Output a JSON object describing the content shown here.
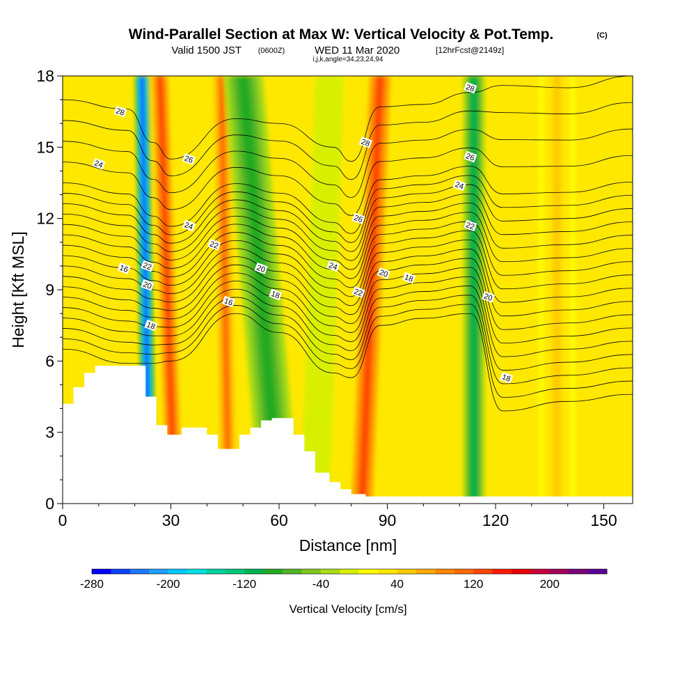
{
  "header": {
    "title": "Wind-Parallel Section at Max W: Vertical Velocity & Pot.Temp.",
    "copyright": "(C)",
    "valid_prefix": "Valid 1500 JST",
    "valid_utc": "(0600Z)",
    "valid_date": "WED 11 Mar 2020",
    "forecast": "[12hrFcst@2149z]",
    "indices": "i,j,k,angle=34,23,24,94"
  },
  "chart_data": {
    "type": "heatmap",
    "xlabel": "Distance [nm]",
    "ylabel": "Height [Kft MSL]",
    "xlim": [
      0,
      158
    ],
    "ylim": [
      0,
      18
    ],
    "x_ticks": [
      "0",
      "30",
      "60",
      "90",
      "120",
      "150"
    ],
    "y_ticks": [
      "0",
      "3",
      "6",
      "9",
      "12",
      "15",
      "18"
    ],
    "x_tick_values": [
      0,
      30,
      60,
      90,
      120,
      150
    ],
    "y_tick_values": [
      0,
      3,
      6,
      9,
      12,
      15,
      18
    ],
    "fill_variable": "Vertical Velocity [cm/s]",
    "contour_variable": "Potential Temperature",
    "velocity_bands": [
      {
        "center_top": 22,
        "center_bottom": 24,
        "width": 4,
        "value": -260
      },
      {
        "center_top": 27,
        "center_bottom": 31,
        "width": 6,
        "value": 120
      },
      {
        "center_top": 44,
        "center_bottom": 46,
        "width": 6,
        "value": 100
      },
      {
        "center_top": 50,
        "center_bottom": 60,
        "width": 11,
        "value": -100
      },
      {
        "center_top": 74,
        "center_bottom": 70,
        "width": 8,
        "value": -20
      },
      {
        "center_top": 88,
        "center_bottom": 83,
        "width": 8,
        "value": 120
      },
      {
        "center_top": 114,
        "center_bottom": 114,
        "width": 6,
        "value": -120
      },
      {
        "center_top": 137,
        "center_bottom": 137,
        "width": 10,
        "value": 40
      }
    ],
    "terrain": {
      "x": [
        0,
        3,
        3,
        6,
        6,
        9,
        9,
        16,
        16,
        23,
        23,
        26,
        26,
        29,
        29,
        33,
        33,
        40,
        40,
        43,
        43,
        49,
        49,
        52,
        52,
        55,
        55,
        58,
        58,
        64,
        64,
        67,
        67,
        70,
        70,
        74,
        74,
        77,
        77,
        80,
        80,
        84,
        84,
        158
      ],
      "heights": [
        4.2,
        4.2,
        4.9,
        4.9,
        5.5,
        5.5,
        5.8,
        5.8,
        5.8,
        5.8,
        4.5,
        4.5,
        3.3,
        3.3,
        2.9,
        2.9,
        3.2,
        3.2,
        2.9,
        2.9,
        2.3,
        2.3,
        2.9,
        2.9,
        3.2,
        3.2,
        3.5,
        3.5,
        3.6,
        3.6,
        2.9,
        2.9,
        2.2,
        2.2,
        1.3,
        1.3,
        0.9,
        0.9,
        0.6,
        0.6,
        0.4,
        0.4,
        0.3,
        0.3
      ]
    },
    "isentropes": {
      "values": [
        16,
        16.5,
        17,
        17.5,
        18,
        18.5,
        19,
        19.5,
        20,
        20.5,
        21,
        21.5,
        22,
        22.5,
        23,
        23.5,
        24,
        25,
        26,
        27,
        28
      ],
      "x": [
        0,
        18,
        25,
        30,
        48,
        60,
        75,
        80,
        88,
        100,
        113,
        122,
        140,
        158
      ],
      "heights_16": [
        6.5,
        5.9,
        5.9,
        6.0,
        8.0,
        7.2,
        5.5,
        5.3,
        7.5,
        7.8,
        8.0,
        3.9,
        4.3,
        4.6
      ],
      "heights_28": [
        17.0,
        16.6,
        15.2,
        14.5,
        16.2,
        16.0,
        15.0,
        14.4,
        16.7,
        16.8,
        17.3,
        17.6,
        17.5,
        18.0
      ]
    },
    "contour_labels": [
      {
        "text": "28",
        "x": 16,
        "y": 16.5
      },
      {
        "text": "24",
        "x": 10,
        "y": 14.3
      },
      {
        "text": "26",
        "x": 35,
        "y": 14.5
      },
      {
        "text": "24",
        "x": 35,
        "y": 11.7
      },
      {
        "text": "22",
        "x": 42,
        "y": 10.9
      },
      {
        "text": "16",
        "x": 17,
        "y": 9.9
      },
      {
        "text": "22",
        "x": 23.5,
        "y": 10.0
      },
      {
        "text": "20",
        "x": 23.5,
        "y": 9.2
      },
      {
        "text": "18",
        "x": 24.5,
        "y": 7.5
      },
      {
        "text": "16",
        "x": 46,
        "y": 8.5
      },
      {
        "text": "20",
        "x": 55,
        "y": 9.9
      },
      {
        "text": "18",
        "x": 59,
        "y": 8.8
      },
      {
        "text": "24",
        "x": 75,
        "y": 10.0
      },
      {
        "text": "22",
        "x": 82,
        "y": 8.9
      },
      {
        "text": "20",
        "x": 89,
        "y": 9.7
      },
      {
        "text": "18",
        "x": 96,
        "y": 9.5
      },
      {
        "text": "28",
        "x": 84,
        "y": 15.2
      },
      {
        "text": "26",
        "x": 82,
        "y": 12.0
      },
      {
        "text": "28",
        "x": 113,
        "y": 17.5
      },
      {
        "text": "26",
        "x": 113,
        "y": 14.6
      },
      {
        "text": "24",
        "x": 110,
        "y": 13.4
      },
      {
        "text": "22",
        "x": 113,
        "y": 11.7
      },
      {
        "text": "20",
        "x": 118,
        "y": 8.7
      },
      {
        "text": "18",
        "x": 123,
        "y": 5.3
      }
    ]
  },
  "colorbar": {
    "colors": [
      "#0000ff",
      "#0b40ff",
      "#1d78ff",
      "#1ea0ff",
      "#00c8ff",
      "#00e0e0",
      "#00d2a0",
      "#00c878",
      "#00b450",
      "#22aa22",
      "#50b428",
      "#80c820",
      "#aadc18",
      "#d8f000",
      "#ffff00",
      "#ffe800",
      "#ffcc00",
      "#ffaa00",
      "#ff8800",
      "#ff6a00",
      "#ff4400",
      "#ff1a00",
      "#e60000",
      "#c8003c",
      "#a0005a",
      "#780078",
      "#5a0096"
    ],
    "tick_labels": [
      "-280",
      "-200",
      "-120",
      "-40",
      "40",
      "120",
      "200"
    ],
    "tick_values": [
      -280,
      -200,
      -120,
      -40,
      40,
      120,
      200
    ],
    "min": -280,
    "max": 260,
    "label": "Vertical Velocity [cm/s]"
  }
}
